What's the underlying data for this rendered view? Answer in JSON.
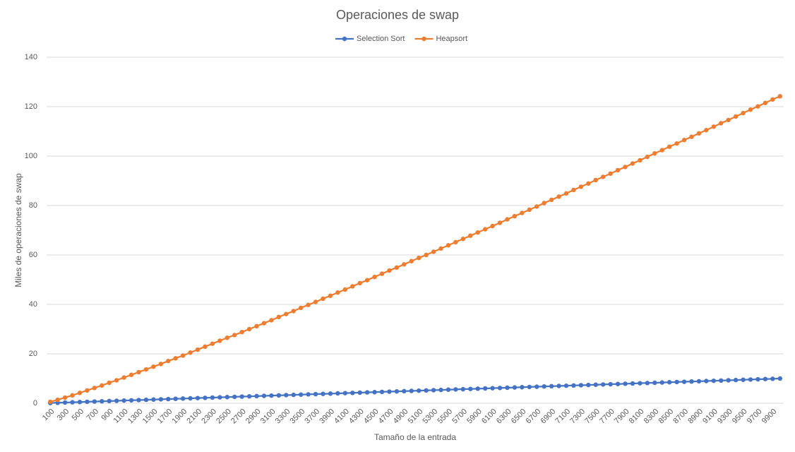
{
  "chart_data": {
    "type": "line",
    "title": "Operaciones de swap",
    "x_label": "Tamaño de la entrada",
    "y_label": "Miles de operaciones de swap",
    "categories": [
      "100",
      null,
      "300",
      null,
      "500",
      null,
      "700",
      null,
      "900",
      null,
      "1100",
      null,
      "1300",
      null,
      "1500",
      null,
      "1700",
      null,
      "1900",
      null,
      "2100",
      null,
      "2300",
      null,
      "2500",
      null,
      "2700",
      null,
      "2900",
      null,
      "3100",
      null,
      "3300",
      null,
      "3500",
      null,
      "3700",
      null,
      "3900",
      null,
      "4100",
      null,
      "4300",
      null,
      "4500",
      null,
      "4700",
      null,
      "4900",
      null,
      "5100",
      null,
      "5300",
      null,
      "5500",
      null,
      "5700",
      null,
      "5900",
      null,
      "6100",
      null,
      "6300",
      null,
      "6500",
      null,
      "6700",
      null,
      "6900",
      null,
      "7100",
      null,
      "7300",
      null,
      "7500",
      null,
      "7700",
      null,
      "7900",
      null,
      "8100",
      null,
      "8300",
      null,
      "8500",
      null,
      "8700",
      null,
      "8900",
      null,
      "9100",
      null,
      "9300",
      null,
      "9500",
      null,
      "9700",
      null,
      "9900",
      null
    ],
    "series": [
      {
        "name": "Selection Sort",
        "color": "#4472c4",
        "values": [
          0.1,
          0.2,
          0.3,
          0.4,
          0.5,
          0.6,
          0.7,
          0.8,
          0.9,
          1.0,
          1.1,
          1.2,
          1.3,
          1.4,
          1.5,
          1.6,
          1.7,
          1.8,
          1.9,
          2.0,
          2.1,
          2.2,
          2.3,
          2.4,
          2.5,
          2.6,
          2.7,
          2.8,
          2.9,
          3.0,
          3.1,
          3.2,
          3.3,
          3.4,
          3.5,
          3.6,
          3.7,
          3.8,
          3.9,
          4.0,
          4.1,
          4.2,
          4.3,
          4.4,
          4.5,
          4.6,
          4.7,
          4.8,
          4.9,
          5.0,
          5.1,
          5.2,
          5.3,
          5.4,
          5.5,
          5.6,
          5.7,
          5.8,
          5.9,
          6.0,
          6.1,
          6.2,
          6.3,
          6.4,
          6.5,
          6.6,
          6.7,
          6.8,
          6.9,
          7.0,
          7.1,
          7.2,
          7.3,
          7.4,
          7.5,
          7.6,
          7.7,
          7.8,
          7.9,
          8.0,
          8.1,
          8.2,
          8.3,
          8.4,
          8.5,
          8.6,
          8.7,
          8.8,
          8.9,
          9.0,
          9.1,
          9.2,
          9.3,
          9.4,
          9.5,
          9.6,
          9.7,
          9.8,
          9.9,
          10.0
        ]
      },
      {
        "name": "Heapsort",
        "color": "#ed7d31",
        "values": [
          0.6,
          1.4,
          2.3,
          3.2,
          4.2,
          5.2,
          6.2,
          7.2,
          8.3,
          9.3,
          10.4,
          11.5,
          12.6,
          13.7,
          14.8,
          15.9,
          17.1,
          18.2,
          19.3,
          20.5,
          21.7,
          22.9,
          24.1,
          25.3,
          26.5,
          27.6,
          28.8,
          30.0,
          31.2,
          32.4,
          33.6,
          34.9,
          36.1,
          37.3,
          38.6,
          39.8,
          41.0,
          42.3,
          43.5,
          44.8,
          46.0,
          47.3,
          48.6,
          49.8,
          51.1,
          52.4,
          53.7,
          54.9,
          56.2,
          57.5,
          58.8,
          60.0,
          61.3,
          62.6,
          63.9,
          65.2,
          66.5,
          67.8,
          69.1,
          70.4,
          71.7,
          73.0,
          74.4,
          75.7,
          77.0,
          78.3,
          79.6,
          81.0,
          82.3,
          83.6,
          84.9,
          86.3,
          87.6,
          88.9,
          90.3,
          91.6,
          92.9,
          94.3,
          95.6,
          97.0,
          98.3,
          99.7,
          101.1,
          102.4,
          103.8,
          105.1,
          106.5,
          107.8,
          109.2,
          110.5,
          111.9,
          113.3,
          114.6,
          116.0,
          117.4,
          118.8,
          120.1,
          121.5,
          122.9,
          124.2
        ]
      }
    ],
    "ylim": [
      0,
      140
    ],
    "yticks": [
      0,
      20,
      40,
      60,
      80,
      100,
      120,
      140
    ],
    "grid": true,
    "legend": "top"
  }
}
